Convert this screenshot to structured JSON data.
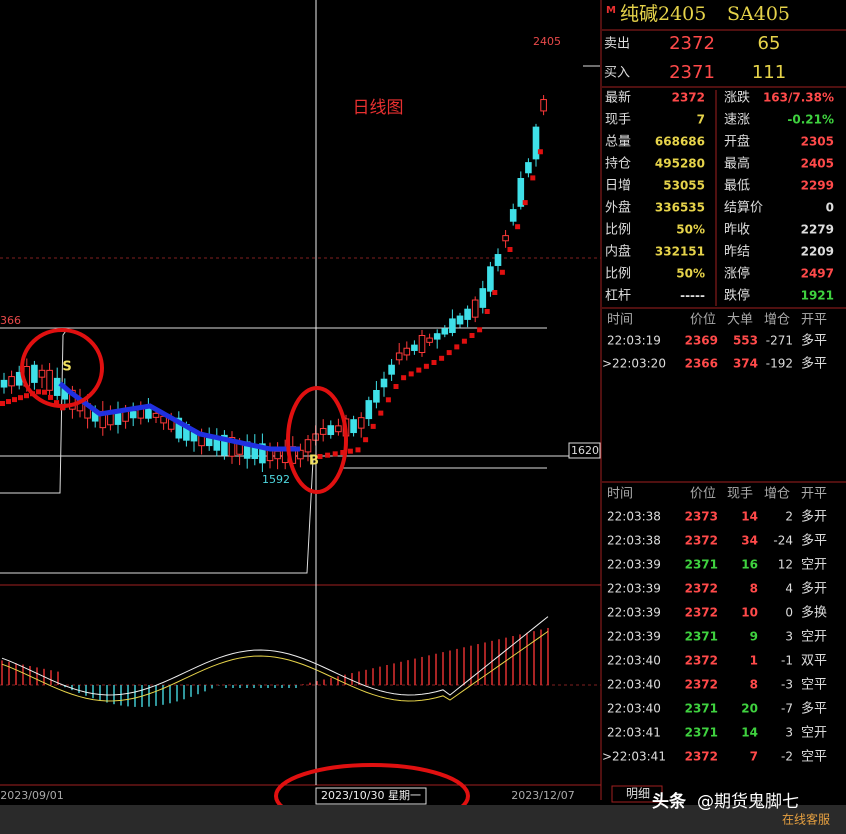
{
  "header": {
    "flag": "M",
    "title": "纯碱2405",
    "code": "SA405"
  },
  "quote": [
    {
      "label": "卖出",
      "price": "2372",
      "volume": "65"
    },
    {
      "label": "买入",
      "price": "2371",
      "volume": "111"
    }
  ],
  "stats_left": [
    {
      "label": "最新",
      "value": "2372",
      "color": "#ff4a4a"
    },
    {
      "label": "现手",
      "value": "7",
      "color": "#e6d34a"
    },
    {
      "label": "总量",
      "value": "668686",
      "color": "#e6d34a"
    },
    {
      "label": "持仓",
      "value": "495280",
      "color": "#e6d34a"
    },
    {
      "label": "日增",
      "value": "53055",
      "color": "#e6d34a"
    },
    {
      "label": "外盘",
      "value": "336535",
      "color": "#e6d34a"
    },
    {
      "label": "比例",
      "value": "50%",
      "color": "#e6d34a"
    },
    {
      "label": "内盘",
      "value": "332151",
      "color": "#e6d34a"
    },
    {
      "label": "比例",
      "value": "50%",
      "color": "#e6d34a"
    },
    {
      "label": "杠杆",
      "value": "-----",
      "color": "#dddddd"
    }
  ],
  "stats_right": [
    {
      "label": "涨跌",
      "value": "163/7.38%",
      "color": "#ff4a4a"
    },
    {
      "label": "速涨",
      "value": "-0.21%",
      "color": "#3fd23f"
    },
    {
      "label": "开盘",
      "value": "2305",
      "color": "#ff4a4a"
    },
    {
      "label": "最高",
      "value": "2405",
      "color": "#ff4a4a"
    },
    {
      "label": "最低",
      "value": "2299",
      "color": "#ff4a4a"
    },
    {
      "label": "结算价",
      "value": "0",
      "color": "#dddddd"
    },
    {
      "label": "昨收",
      "value": "2279",
      "color": "#dddddd"
    },
    {
      "label": "昨结",
      "value": "2209",
      "color": "#dddddd"
    },
    {
      "label": "涨停",
      "value": "2497",
      "color": "#ff4a4a"
    },
    {
      "label": "跌停",
      "value": "1921",
      "color": "#3fd23f"
    }
  ],
  "ticks_big": {
    "headers": [
      "时间",
      "价位",
      "大单",
      "增仓",
      "开平"
    ],
    "rows": [
      [
        "22:03:19",
        "2369",
        "553",
        "-271",
        "多平"
      ],
      [
        ">22:03:20",
        "2366",
        "374",
        "-192",
        "多平"
      ]
    ],
    "colors": [
      "#ff4a4a",
      "#ff4a4a"
    ]
  },
  "ticks": {
    "headers": [
      "时间",
      "价位",
      "现手",
      "增仓",
      "开平"
    ],
    "rows": [
      [
        "22:03:38",
        "2373",
        "14",
        "2",
        "多开"
      ],
      [
        "22:03:38",
        "2372",
        "34",
        "-24",
        "多平"
      ],
      [
        "22:03:39",
        "2371",
        "16",
        "12",
        "空开"
      ],
      [
        "22:03:39",
        "2372",
        "8",
        "4",
        "多开"
      ],
      [
        "22:03:39",
        "2372",
        "10",
        "0",
        "多换"
      ],
      [
        "22:03:39",
        "2371",
        "9",
        "3",
        "空开"
      ],
      [
        "22:03:40",
        "2372",
        "1",
        "-1",
        "双平"
      ],
      [
        "22:03:40",
        "2372",
        "8",
        "-3",
        "空平"
      ],
      [
        "22:03:40",
        "2371",
        "20",
        "-7",
        "多平"
      ],
      [
        "22:03:41",
        "2371",
        "14",
        "3",
        "空开"
      ],
      [
        ">22:03:41",
        "2372",
        "7",
        "-2",
        "空平"
      ]
    ],
    "colors": [
      "#ff4a4a",
      "#ff4a4a",
      "#3fd23f",
      "#ff4a4a",
      "#ff4a4a",
      "#3fd23f",
      "#ff4a4a",
      "#ff4a4a",
      "#3fd23f",
      "#3fd23f",
      "#ff4a4a"
    ]
  },
  "chart": {
    "title": "日线图",
    "high_label": "2405",
    "low_label": "1592",
    "left_label": "366",
    "sell_signal": "S",
    "buy_signal": "B",
    "price_tag": "1620",
    "date_start": "2023/09/01",
    "date_end": "2023/12/07",
    "crosshair_date": "2023/10/30 星期一"
  },
  "tabs": [
    "明细"
  ],
  "watermark": {
    "source": "头条",
    "author": "@期货鬼脚七",
    "service": "在线客服"
  }
}
